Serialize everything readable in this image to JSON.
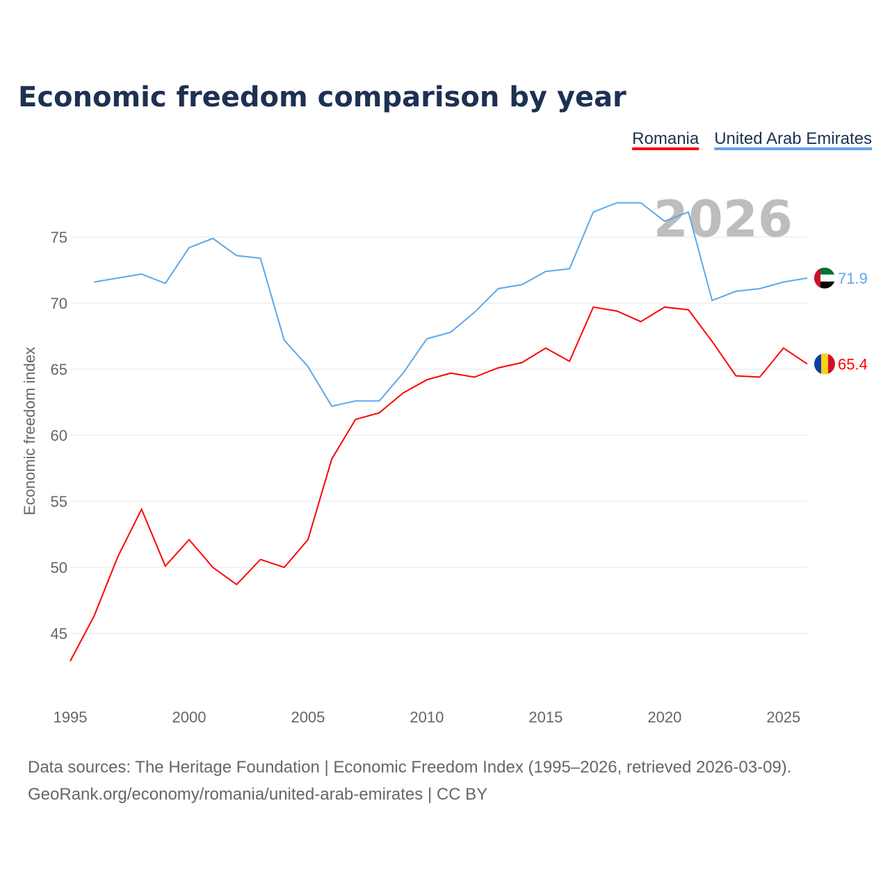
{
  "chart_data": {
    "type": "line",
    "title": "Economic freedom comparison by year",
    "ylabel": "Economic freedom index",
    "xlabel": "",
    "xlim": [
      1995,
      2026
    ],
    "ylim": [
      40.5,
      78.5
    ],
    "xticks": [
      1995,
      2000,
      2005,
      2010,
      2015,
      2020,
      2025
    ],
    "yticks": [
      45,
      50,
      55,
      60,
      65,
      70,
      75
    ],
    "grid": true,
    "legend_position": "top-right",
    "year_label": "2026",
    "series": [
      {
        "name": "Romania",
        "color": "#ff0000",
        "end_label": "65.4",
        "x": [
          1995,
          1996,
          1997,
          1998,
          1999,
          2000,
          2001,
          2002,
          2003,
          2004,
          2005,
          2006,
          2007,
          2008,
          2009,
          2010,
          2011,
          2012,
          2013,
          2014,
          2015,
          2016,
          2017,
          2018,
          2019,
          2020,
          2021,
          2022,
          2023,
          2024,
          2025,
          2026
        ],
        "values": [
          42.9,
          46.3,
          50.8,
          54.4,
          50.1,
          52.1,
          50.0,
          48.7,
          50.6,
          50.0,
          52.1,
          58.2,
          61.2,
          61.7,
          63.2,
          64.2,
          64.7,
          64.4,
          65.1,
          65.5,
          66.6,
          65.6,
          69.7,
          69.4,
          68.6,
          69.7,
          69.5,
          67.1,
          64.5,
          64.4,
          66.6,
          65.4
        ]
      },
      {
        "name": "United Arab Emirates",
        "color": "#5da8e8",
        "end_label": "71.9",
        "x": [
          1996,
          1997,
          1998,
          1999,
          2000,
          2001,
          2002,
          2003,
          2004,
          2005,
          2006,
          2007,
          2008,
          2009,
          2010,
          2011,
          2012,
          2013,
          2014,
          2015,
          2016,
          2017,
          2018,
          2019,
          2020,
          2021,
          2022,
          2023,
          2024,
          2025,
          2026
        ],
        "values": [
          71.6,
          71.9,
          72.2,
          71.5,
          74.2,
          74.9,
          73.6,
          73.4,
          67.2,
          65.2,
          62.2,
          62.6,
          62.6,
          64.7,
          67.3,
          67.8,
          69.3,
          71.1,
          71.4,
          72.4,
          72.6,
          76.9,
          77.6,
          77.6,
          76.2,
          76.9,
          70.2,
          70.9,
          71.1,
          71.6,
          71.9
        ]
      }
    ]
  },
  "footer": {
    "line1": "Data sources: The Heritage Foundation | Economic Freedom Index (1995–2026, retrieved 2026-03-09).",
    "line2": "GeoRank.org/economy/romania/united-arab-emirates | CC BY"
  }
}
